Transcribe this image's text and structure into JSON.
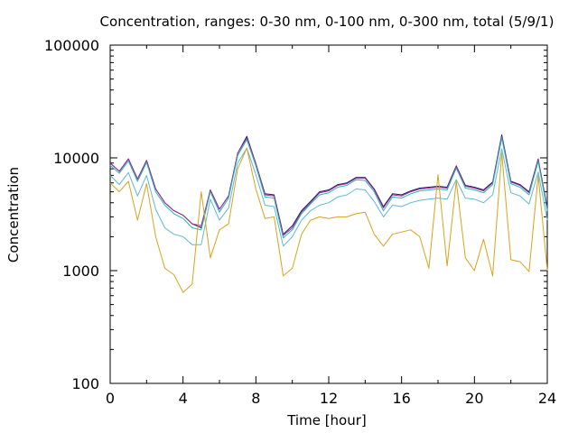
{
  "chart_data": {
    "type": "line",
    "title": "Concentration, ranges: 0-30 nm, 0-100 nm, 0-300 nm, total (5/9/1)",
    "xlabel": "Time [hour]",
    "ylabel": "Concentration",
    "xlim": [
      0,
      24
    ],
    "ylim": [
      100,
      100000
    ],
    "yscale": "log",
    "x_ticks": [
      "0",
      "4",
      "8",
      "12",
      "16",
      "20",
      "24"
    ],
    "y_ticks": [
      "100",
      "1000",
      "10000",
      "100000"
    ],
    "grid": false,
    "legend": "none",
    "x": [
      0,
      0.5,
      1,
      1.5,
      2,
      2.5,
      3,
      3.5,
      4,
      4.5,
      5,
      5.5,
      6,
      6.5,
      7,
      7.5,
      8,
      8.5,
      9,
      9.5,
      10,
      10.5,
      11,
      11.5,
      12,
      12.5,
      13,
      13.5,
      14,
      14.5,
      15,
      15.5,
      16,
      16.5,
      17,
      17.5,
      18,
      18.5,
      19,
      19.5,
      20,
      20.5,
      21,
      21.5,
      22,
      22.5,
      23,
      23.5,
      24
    ],
    "series": [
      {
        "color": "#1a1a6e",
        "values": [
          9000,
          7600,
          9800,
          6500,
          9500,
          5300,
          4000,
          3400,
          3100,
          2600,
          2400,
          5200,
          3500,
          4600,
          11000,
          15500,
          8900,
          4800,
          4700,
          2100,
          2500,
          3400,
          4100,
          5000,
          5200,
          5800,
          6000,
          6700,
          6700,
          5300,
          3700,
          4800,
          4700,
          5100,
          5400,
          5500,
          5600,
          5500,
          8500,
          5700,
          5500,
          5200,
          6100,
          16000,
          6200,
          5800,
          5000,
          9800,
          3600
        ]
      },
      {
        "color": "#9e2a9e",
        "values": [
          9000,
          7600,
          9800,
          6500,
          9500,
          5300,
          4000,
          3400,
          3100,
          2600,
          2500,
          5200,
          3500,
          4600,
          11000,
          15000,
          8900,
          4700,
          4600,
          2050,
          2400,
          3300,
          4000,
          4900,
          5100,
          5700,
          5900,
          6600,
          6600,
          5200,
          3600,
          4700,
          4600,
          5000,
          5300,
          5400,
          5500,
          5400,
          8400,
          5600,
          5400,
          5100,
          6000,
          15500,
          6100,
          5700,
          4900,
          9700,
          3500
        ]
      },
      {
        "color": "#2ab3b3",
        "values": [
          8600,
          7300,
          9400,
          6200,
          9100,
          5000,
          3800,
          3200,
          2900,
          2400,
          2300,
          5000,
          3300,
          4400,
          10500,
          14500,
          8500,
          4500,
          4400,
          1950,
          2300,
          3200,
          3900,
          4700,
          4900,
          5500,
          5700,
          6400,
          6300,
          5000,
          3400,
          4500,
          4400,
          4800,
          5100,
          5200,
          5300,
          5200,
          8100,
          5400,
          5200,
          4900,
          5800,
          15000,
          5900,
          5500,
          4700,
          9300,
          3400
        ]
      },
      {
        "color": "#5fb8d6",
        "values": [
          7000,
          5800,
          7400,
          4600,
          7000,
          3500,
          2400,
          2100,
          2000,
          1700,
          1700,
          4300,
          2800,
          3600,
          9000,
          12200,
          7100,
          3800,
          3700,
          1650,
          2000,
          2800,
          3400,
          3800,
          4000,
          4500,
          4700,
          5300,
          5200,
          4100,
          3000,
          3800,
          3700,
          4000,
          4200,
          4300,
          4400,
          4300,
          6400,
          4400,
          4300,
          4000,
          4700,
          12000,
          4900,
          4600,
          3900,
          7500,
          2800
        ]
      },
      {
        "color": "#d9a31c",
        "values": [
          6000,
          5000,
          6200,
          2800,
          5900,
          2000,
          1050,
          920,
          640,
          760,
          5000,
          1300,
          2300,
          2600,
          8000,
          12200,
          5300,
          2900,
          3000,
          900,
          1050,
          2100,
          2800,
          3000,
          2900,
          3000,
          3000,
          3200,
          3300,
          2100,
          1650,
          2100,
          2200,
          2300,
          2000,
          1050,
          7100,
          1100,
          6200,
          1300,
          1000,
          1900,
          900,
          11000,
          1250,
          1200,
          980,
          7000,
          1000
        ]
      }
    ]
  }
}
